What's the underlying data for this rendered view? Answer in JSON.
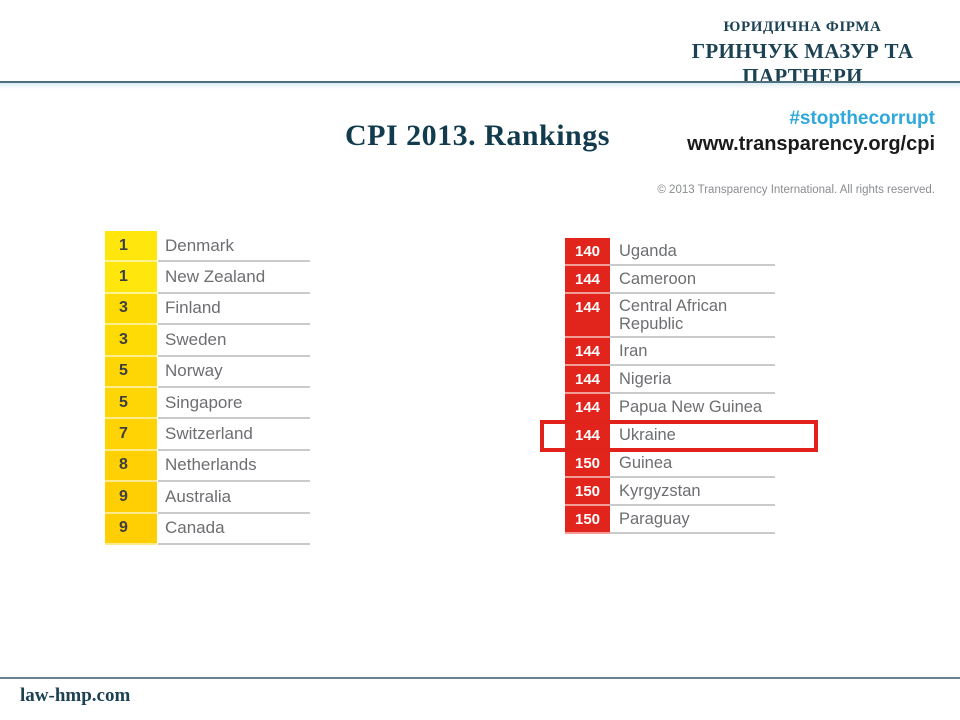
{
  "header": {
    "firm_line1": "ЮРИДИЧНА ФІРМА",
    "firm_line2": "ГРИНЧУК МАЗУР ТА ПАРТНЕРИ"
  },
  "title": "CPI 2013. Rankings",
  "source": {
    "hashtag": "#stopthecorrupt",
    "url": "www.transparency.org/cpi",
    "copyright": "© 2013 Transparency International. All rights reserved."
  },
  "colors": {
    "accent_teal": "#1c4254",
    "hashtag_blue": "#2fa8dc",
    "rank_red": "#e2251c",
    "highlight_red": "#e0211c",
    "country_text_gray": "#6d6e71"
  },
  "left_table": {
    "rows": [
      {
        "rank": "1",
        "country": "Denmark",
        "color": "#ffe60d"
      },
      {
        "rank": "1",
        "country": "New Zealand",
        "color": "#ffe60d"
      },
      {
        "rank": "3",
        "country": "Finland",
        "color": "#ffdb06"
      },
      {
        "rank": "3",
        "country": "Sweden",
        "color": "#ffdb06"
      },
      {
        "rank": "5",
        "country": "Norway",
        "color": "#ffd605"
      },
      {
        "rank": "5",
        "country": "Singapore",
        "color": "#ffd605"
      },
      {
        "rank": "7",
        "country": "Switzerland",
        "color": "#ffd304"
      },
      {
        "rank": "8",
        "country": "Netherlands",
        "color": "#ffd104"
      },
      {
        "rank": "9",
        "country": "Australia",
        "color": "#ffce03"
      },
      {
        "rank": "9",
        "country": "Canada",
        "color": "#ffce03"
      }
    ]
  },
  "right_table": {
    "rows": [
      {
        "rank": "140",
        "country": "Uganda",
        "highlight": false
      },
      {
        "rank": "144",
        "country": "Cameroon",
        "highlight": false
      },
      {
        "rank": "144",
        "country": "Central African Republic",
        "highlight": false
      },
      {
        "rank": "144",
        "country": "Iran",
        "highlight": false
      },
      {
        "rank": "144",
        "country": "Nigeria",
        "highlight": false
      },
      {
        "rank": "144",
        "country": "Papua New Guinea",
        "highlight": false
      },
      {
        "rank": "144",
        "country": "Ukraine",
        "highlight": true
      },
      {
        "rank": "150",
        "country": "Guinea",
        "highlight": false
      },
      {
        "rank": "150",
        "country": "Kyrgyzstan",
        "highlight": false
      },
      {
        "rank": "150",
        "country": "Paraguay",
        "highlight": false
      }
    ]
  },
  "footer": {
    "site": "law-hmp.com"
  }
}
